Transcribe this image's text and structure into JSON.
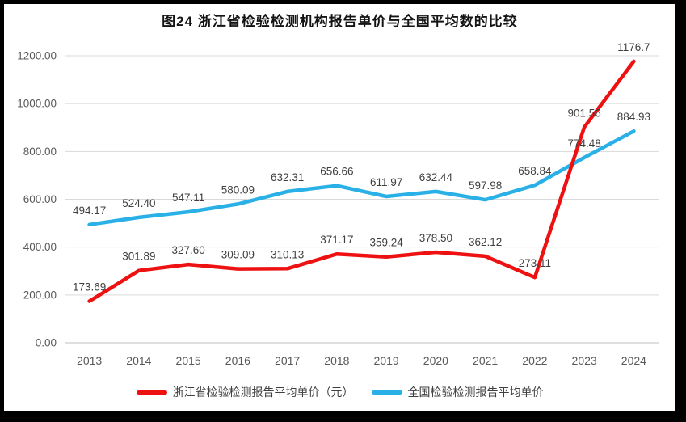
{
  "chart_data": {
    "type": "line",
    "title": "图24  浙江省检验检测机构报告单价与全国平均数的比较",
    "categories": [
      "2013",
      "2014",
      "2015",
      "2016",
      "2017",
      "2018",
      "2019",
      "2020",
      "2021",
      "2022",
      "2023",
      "2024"
    ],
    "series": [
      {
        "name": "浙江省检验检测报告平均单价（元）",
        "color": "#ee1111",
        "values": [
          173.69,
          301.89,
          327.6,
          309.09,
          310.13,
          371.17,
          359.24,
          378.5,
          362.12,
          273.11,
          901.56,
          1176.7
        ],
        "labels": [
          "173.69",
          "301.89",
          "327.60",
          "309.09",
          "310.13",
          "371.17",
          "359.24",
          "378.50",
          "362.12",
          "273.11",
          "901.56",
          "1176.7"
        ]
      },
      {
        "name": "全国检验检测报告平均单价",
        "color": "#29b0e6",
        "values": [
          494.17,
          524.4,
          547.11,
          580.09,
          632.31,
          656.66,
          611.97,
          632.44,
          597.98,
          658.84,
          774.48,
          884.93
        ],
        "labels": [
          "494.17",
          "524.40",
          "547.11",
          "580.09",
          "632.31",
          "656.66",
          "611.97",
          "632.44",
          "597.98",
          "658.84",
          "774.48",
          "884.93"
        ]
      }
    ],
    "xlabel": "",
    "ylabel": "",
    "ylim": [
      0,
      1200
    ],
    "ytick_step": 200,
    "ytick_labels": [
      "0.00",
      "200.00",
      "400.00",
      "600.00",
      "800.00",
      "1000.00",
      "1200.00"
    ],
    "grid": true,
    "legend_position": "bottom",
    "styles": {
      "frame_color": "#000000",
      "background": "#ffffff",
      "gridline_color": "#d9d9d9",
      "axis_line_color": "#bfbfbf",
      "tick_text_color": "#595959",
      "data_label_color": "#3f3f3f",
      "title_color": "#141414"
    }
  }
}
